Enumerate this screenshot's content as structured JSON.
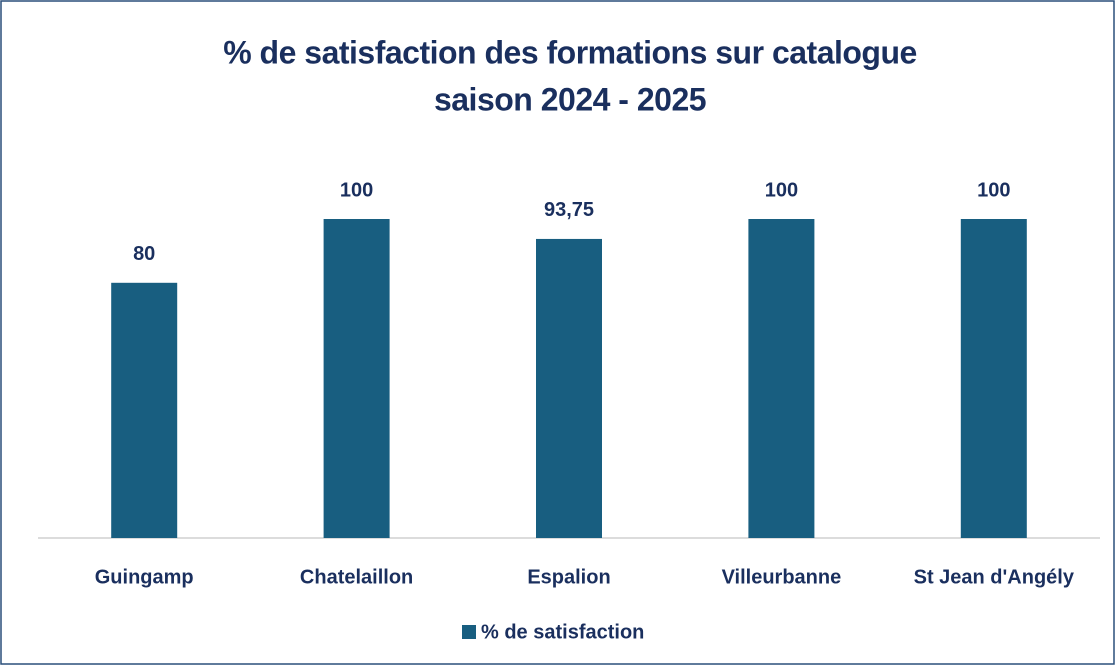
{
  "chart_data": {
    "type": "bar",
    "title": [
      "% de satisfaction des formations sur catalogue",
      "saison 2024 - 2025"
    ],
    "categories": [
      "Guingamp",
      "Chatelaillon",
      "Espalion",
      "Villeurbanne",
      "St Jean d'Angély"
    ],
    "series": [
      {
        "name": "% de satisfaction",
        "color": "#185e80",
        "values": [
          80,
          100,
          93.75,
          100,
          100
        ],
        "value_labels": [
          "80",
          "100",
          "93,75",
          "100",
          "100"
        ]
      }
    ],
    "ylim": [
      0,
      100
    ],
    "legend": "bottom"
  }
}
